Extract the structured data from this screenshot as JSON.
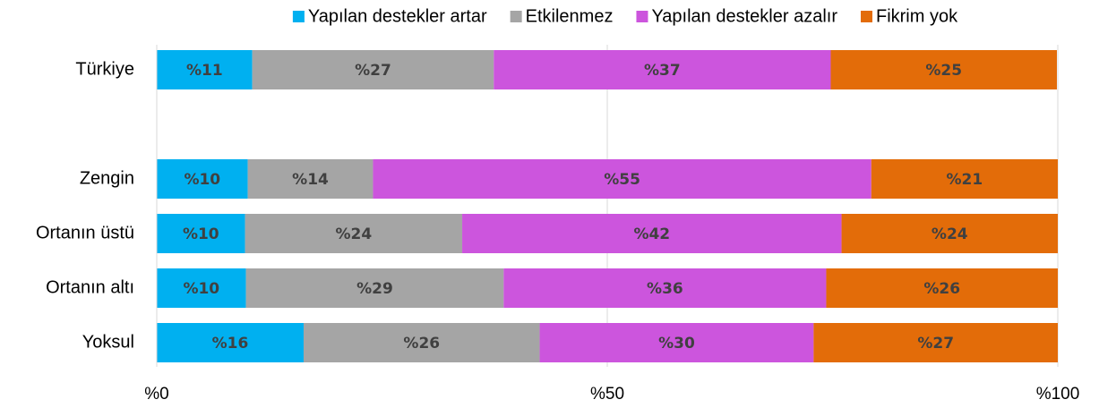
{
  "chart_data": {
    "type": "stacked-bar-horizontal",
    "categories": [
      "Türkiye",
      null,
      "Zengin",
      "Ortanın üstü",
      "Ortanın altı",
      "Yoksul"
    ],
    "series": [
      {
        "name": "Yapılan destekler artar",
        "color": "#00b0f0",
        "values": [
          10.6,
          null,
          10.1,
          9.8,
          9.9,
          16.3
        ],
        "value_labels": [
          "%11",
          null,
          "%10",
          "%10",
          "%10",
          "%16"
        ]
      },
      {
        "name": "Etkilenmez",
        "color": "#a5a5a5",
        "values": [
          26.8,
          null,
          13.9,
          24.1,
          28.6,
          26.2
        ],
        "value_labels": [
          "%27",
          null,
          "%14",
          "%24",
          "%29",
          "%26"
        ]
      },
      {
        "name": "Yapılan destekler azalır",
        "color": "#cc55dd",
        "values": [
          37.4,
          null,
          55.3,
          42.1,
          35.8,
          30.4
        ],
        "value_labels": [
          "%37",
          null,
          "%55",
          "%42",
          "%36",
          "%30"
        ]
      },
      {
        "name": "Fikrim yok",
        "color": "#e36c09",
        "values": [
          25.1,
          null,
          20.7,
          24.0,
          25.7,
          27.1
        ],
        "value_labels": [
          "%25",
          null,
          "%21",
          "%24",
          "%26",
          "%27"
        ]
      }
    ],
    "xlim": [
      0,
      100
    ],
    "xticks": [
      {
        "value": 0,
        "label": "%0"
      },
      {
        "value": 50,
        "label": "%50"
      },
      {
        "value": 100,
        "label": "%100"
      }
    ],
    "grid": true,
    "legend": "top"
  }
}
